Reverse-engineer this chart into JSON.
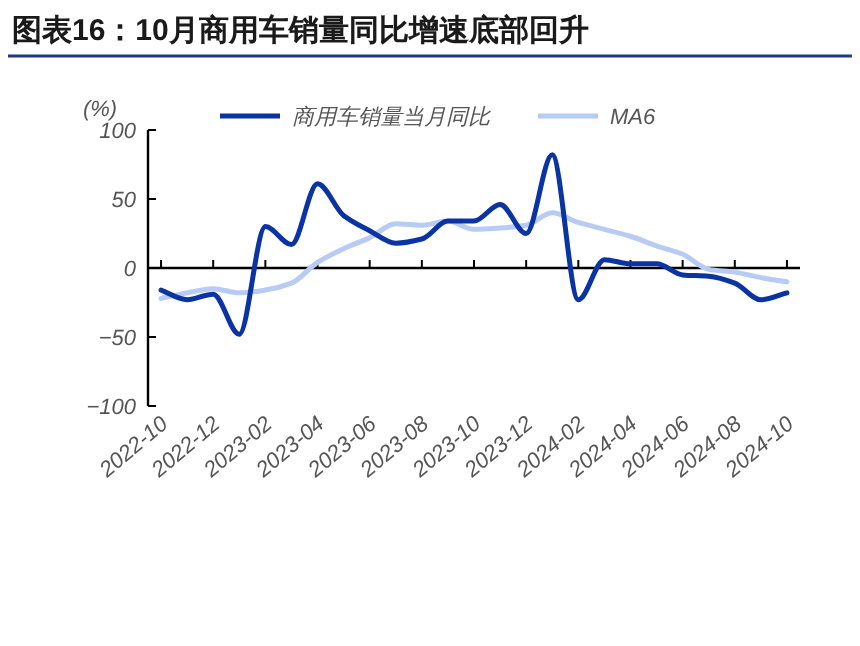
{
  "chart_data": {
    "type": "line",
    "title": "图表16：10月商用车销量同比增速底部回升",
    "ylabel": "(%)",
    "categories": [
      "2022-10",
      null,
      "2022-12",
      null,
      "2023-02",
      null,
      "2023-04",
      null,
      "2023-06",
      null,
      "2023-08",
      null,
      "2023-10",
      null,
      "2023-12",
      null,
      "2024-02",
      null,
      "2024-04",
      null,
      "2024-06",
      null,
      "2024-08",
      null,
      "2024-10"
    ],
    "series": [
      {
        "name": "商用车销量当月同比",
        "color": "#0a34a4",
        "values": [
          -16,
          -23,
          -19,
          -48,
          30,
          17,
          61,
          38,
          27,
          18,
          21,
          34,
          34,
          46,
          25,
          82,
          -23,
          6,
          3,
          3,
          -5,
          -6,
          -11,
          -23,
          -18
        ]
      },
      {
        "name": "MA6",
        "color": "#b7cbf5",
        "values": [
          -22,
          -18,
          -15,
          -18,
          -16,
          -11,
          4,
          14,
          22,
          32,
          31,
          34,
          28,
          29,
          31,
          40,
          33,
          28,
          23,
          16,
          10,
          -1,
          -3,
          -7,
          -10
        ]
      }
    ],
    "ylim": [
      -100,
      100
    ],
    "yticks": [
      -100,
      -50,
      0,
      50,
      100
    ],
    "legend": "top",
    "marker": "none",
    "line_style": "solid"
  }
}
